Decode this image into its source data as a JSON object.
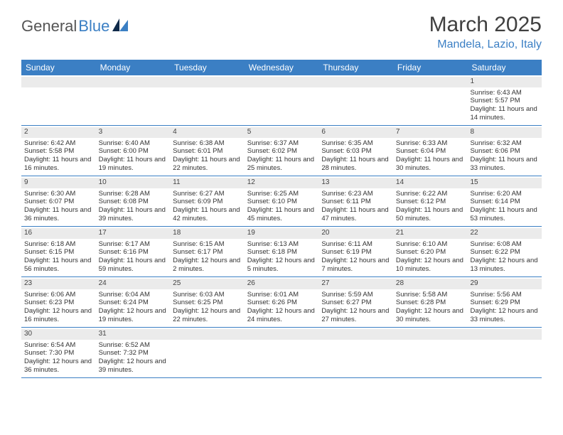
{
  "brand": {
    "part1": "General",
    "part2": "Blue"
  },
  "title": "March 2025",
  "location": "Mandela, Lazio, Italy",
  "dayNames": [
    "Sunday",
    "Monday",
    "Tuesday",
    "Wednesday",
    "Thursday",
    "Friday",
    "Saturday"
  ],
  "colors": {
    "headerBar": "#3b7fc4",
    "accentText": "#3b7fc4",
    "rowShade": "#ebebeb",
    "border": "#3b7fc4",
    "bodyText": "#333333",
    "titleText": "#404040"
  },
  "weeks": [
    [
      {
        "empty": true
      },
      {
        "empty": true
      },
      {
        "empty": true
      },
      {
        "empty": true
      },
      {
        "empty": true
      },
      {
        "empty": true
      },
      {
        "date": "1",
        "sunrise": "Sunrise: 6:43 AM",
        "sunset": "Sunset: 5:57 PM",
        "daylight": "Daylight: 11 hours and 14 minutes."
      }
    ],
    [
      {
        "date": "2",
        "sunrise": "Sunrise: 6:42 AM",
        "sunset": "Sunset: 5:58 PM",
        "daylight": "Daylight: 11 hours and 16 minutes."
      },
      {
        "date": "3",
        "sunrise": "Sunrise: 6:40 AM",
        "sunset": "Sunset: 6:00 PM",
        "daylight": "Daylight: 11 hours and 19 minutes."
      },
      {
        "date": "4",
        "sunrise": "Sunrise: 6:38 AM",
        "sunset": "Sunset: 6:01 PM",
        "daylight": "Daylight: 11 hours and 22 minutes."
      },
      {
        "date": "5",
        "sunrise": "Sunrise: 6:37 AM",
        "sunset": "Sunset: 6:02 PM",
        "daylight": "Daylight: 11 hours and 25 minutes."
      },
      {
        "date": "6",
        "sunrise": "Sunrise: 6:35 AM",
        "sunset": "Sunset: 6:03 PM",
        "daylight": "Daylight: 11 hours and 28 minutes."
      },
      {
        "date": "7",
        "sunrise": "Sunrise: 6:33 AM",
        "sunset": "Sunset: 6:04 PM",
        "daylight": "Daylight: 11 hours and 30 minutes."
      },
      {
        "date": "8",
        "sunrise": "Sunrise: 6:32 AM",
        "sunset": "Sunset: 6:06 PM",
        "daylight": "Daylight: 11 hours and 33 minutes."
      }
    ],
    [
      {
        "date": "9",
        "sunrise": "Sunrise: 6:30 AM",
        "sunset": "Sunset: 6:07 PM",
        "daylight": "Daylight: 11 hours and 36 minutes."
      },
      {
        "date": "10",
        "sunrise": "Sunrise: 6:28 AM",
        "sunset": "Sunset: 6:08 PM",
        "daylight": "Daylight: 11 hours and 39 minutes."
      },
      {
        "date": "11",
        "sunrise": "Sunrise: 6:27 AM",
        "sunset": "Sunset: 6:09 PM",
        "daylight": "Daylight: 11 hours and 42 minutes."
      },
      {
        "date": "12",
        "sunrise": "Sunrise: 6:25 AM",
        "sunset": "Sunset: 6:10 PM",
        "daylight": "Daylight: 11 hours and 45 minutes."
      },
      {
        "date": "13",
        "sunrise": "Sunrise: 6:23 AM",
        "sunset": "Sunset: 6:11 PM",
        "daylight": "Daylight: 11 hours and 47 minutes."
      },
      {
        "date": "14",
        "sunrise": "Sunrise: 6:22 AM",
        "sunset": "Sunset: 6:12 PM",
        "daylight": "Daylight: 11 hours and 50 minutes."
      },
      {
        "date": "15",
        "sunrise": "Sunrise: 6:20 AM",
        "sunset": "Sunset: 6:14 PM",
        "daylight": "Daylight: 11 hours and 53 minutes."
      }
    ],
    [
      {
        "date": "16",
        "sunrise": "Sunrise: 6:18 AM",
        "sunset": "Sunset: 6:15 PM",
        "daylight": "Daylight: 11 hours and 56 minutes."
      },
      {
        "date": "17",
        "sunrise": "Sunrise: 6:17 AM",
        "sunset": "Sunset: 6:16 PM",
        "daylight": "Daylight: 11 hours and 59 minutes."
      },
      {
        "date": "18",
        "sunrise": "Sunrise: 6:15 AM",
        "sunset": "Sunset: 6:17 PM",
        "daylight": "Daylight: 12 hours and 2 minutes."
      },
      {
        "date": "19",
        "sunrise": "Sunrise: 6:13 AM",
        "sunset": "Sunset: 6:18 PM",
        "daylight": "Daylight: 12 hours and 5 minutes."
      },
      {
        "date": "20",
        "sunrise": "Sunrise: 6:11 AM",
        "sunset": "Sunset: 6:19 PM",
        "daylight": "Daylight: 12 hours and 7 minutes."
      },
      {
        "date": "21",
        "sunrise": "Sunrise: 6:10 AM",
        "sunset": "Sunset: 6:20 PM",
        "daylight": "Daylight: 12 hours and 10 minutes."
      },
      {
        "date": "22",
        "sunrise": "Sunrise: 6:08 AM",
        "sunset": "Sunset: 6:22 PM",
        "daylight": "Daylight: 12 hours and 13 minutes."
      }
    ],
    [
      {
        "date": "23",
        "sunrise": "Sunrise: 6:06 AM",
        "sunset": "Sunset: 6:23 PM",
        "daylight": "Daylight: 12 hours and 16 minutes."
      },
      {
        "date": "24",
        "sunrise": "Sunrise: 6:04 AM",
        "sunset": "Sunset: 6:24 PM",
        "daylight": "Daylight: 12 hours and 19 minutes."
      },
      {
        "date": "25",
        "sunrise": "Sunrise: 6:03 AM",
        "sunset": "Sunset: 6:25 PM",
        "daylight": "Daylight: 12 hours and 22 minutes."
      },
      {
        "date": "26",
        "sunrise": "Sunrise: 6:01 AM",
        "sunset": "Sunset: 6:26 PM",
        "daylight": "Daylight: 12 hours and 24 minutes."
      },
      {
        "date": "27",
        "sunrise": "Sunrise: 5:59 AM",
        "sunset": "Sunset: 6:27 PM",
        "daylight": "Daylight: 12 hours and 27 minutes."
      },
      {
        "date": "28",
        "sunrise": "Sunrise: 5:58 AM",
        "sunset": "Sunset: 6:28 PM",
        "daylight": "Daylight: 12 hours and 30 minutes."
      },
      {
        "date": "29",
        "sunrise": "Sunrise: 5:56 AM",
        "sunset": "Sunset: 6:29 PM",
        "daylight": "Daylight: 12 hours and 33 minutes."
      }
    ],
    [
      {
        "date": "30",
        "sunrise": "Sunrise: 6:54 AM",
        "sunset": "Sunset: 7:30 PM",
        "daylight": "Daylight: 12 hours and 36 minutes."
      },
      {
        "date": "31",
        "sunrise": "Sunrise: 6:52 AM",
        "sunset": "Sunset: 7:32 PM",
        "daylight": "Daylight: 12 hours and 39 minutes."
      },
      {
        "empty": true
      },
      {
        "empty": true
      },
      {
        "empty": true
      },
      {
        "empty": true
      },
      {
        "empty": true
      }
    ]
  ]
}
